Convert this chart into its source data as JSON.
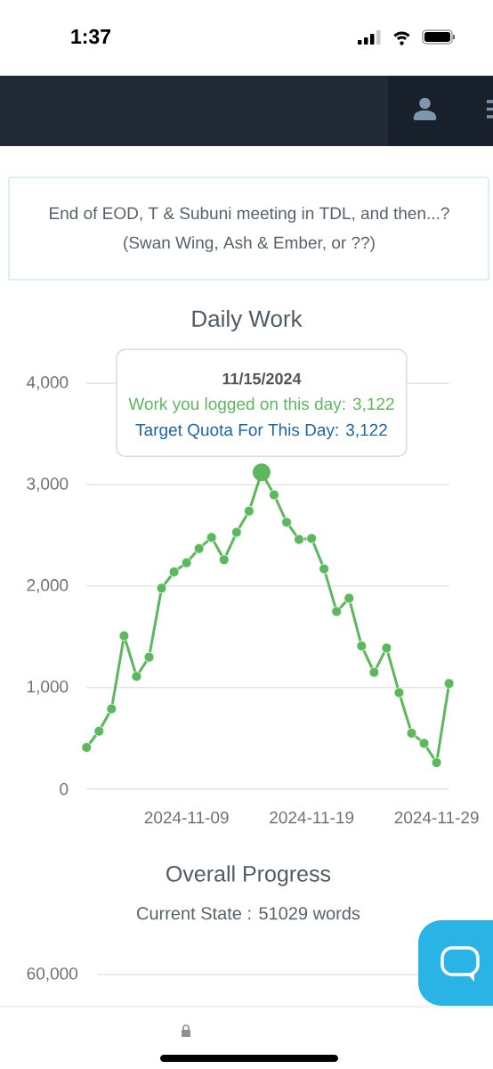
{
  "chart_data": {
    "type": "line",
    "title": "Daily Work",
    "x": [
      "2024-11-01",
      "2024-11-02",
      "2024-11-03",
      "2024-11-04",
      "2024-11-05",
      "2024-11-06",
      "2024-11-07",
      "2024-11-08",
      "2024-11-09",
      "2024-11-10",
      "2024-11-11",
      "2024-11-12",
      "2024-11-13",
      "2024-11-14",
      "2024-11-15",
      "2024-11-16",
      "2024-11-17",
      "2024-11-18",
      "2024-11-19",
      "2024-11-20",
      "2024-11-21",
      "2024-11-22",
      "2024-11-23",
      "2024-11-24",
      "2024-11-25",
      "2024-11-26",
      "2024-11-27",
      "2024-11-28",
      "2024-11-29",
      "2024-11-30"
    ],
    "values": [
      410,
      570,
      790,
      1510,
      1110,
      1300,
      1980,
      2140,
      2230,
      2370,
      2480,
      2260,
      2530,
      2740,
      3122,
      2900,
      2630,
      2460,
      2470,
      2170,
      1750,
      1880,
      1410,
      1150,
      1390,
      950,
      550,
      450,
      260,
      1040
    ],
    "color": "#5cb85c",
    "marker": "circle",
    "line_style": "solid",
    "grid": "y",
    "xlim": [
      "2024-11-01",
      "2024-11-30"
    ],
    "xticks": [
      "2024-11-09",
      "2024-11-19",
      "2024-11-29"
    ],
    "ylim": [
      0,
      4000
    ],
    "yticks": [
      0,
      {
        "value": 1000,
        "label": "1,000"
      },
      {
        "value": 2000,
        "label": "2,000"
      },
      {
        "value": 3000,
        "label": "3,000"
      },
      {
        "value": 4000,
        "label": "4,000"
      }
    ],
    "annotations": [
      "1:37",
      "End of EOD, T & Subuni meeting in TDL, and then...?",
      "(Swan Wing, Ash & Ember, or ??)",
      "11/15/2024",
      "Work you logged on this day: 3,122",
      {
        "text": "Target Quota For This Day: 3,122",
        "x": "2024-11-15",
        "y": 3122
      },
      "Overall Progress",
      "Current State : 51029 words",
      "60,000"
    ]
  }
}
